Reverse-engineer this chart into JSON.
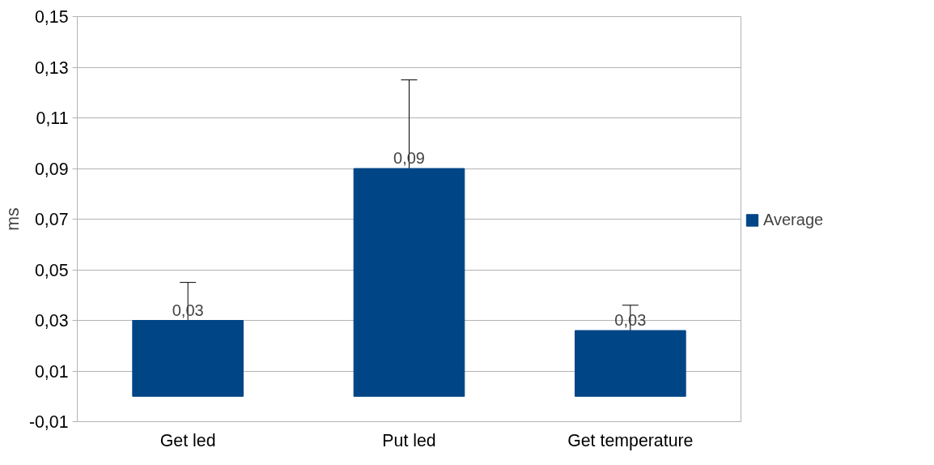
{
  "chart_data": {
    "type": "bar",
    "ylabel": "ms",
    "categories": [
      "Get led",
      "Put led",
      "Get temperature"
    ],
    "series": [
      {
        "name": "Average",
        "color": "#004586",
        "values": [
          0.03,
          0.09,
          0.026
        ],
        "errors": [
          0.015,
          0.035,
          0.01
        ],
        "value_labels": [
          "0,03",
          "0,09",
          "0,03"
        ]
      }
    ],
    "ylim": [
      -0.01,
      0.15
    ],
    "yticks": [
      {
        "value": -0.01,
        "label": "-0,01"
      },
      {
        "value": 0.01,
        "label": "0,01"
      },
      {
        "value": 0.03,
        "label": "0,03"
      },
      {
        "value": 0.05,
        "label": "0,05"
      },
      {
        "value": 0.07,
        "label": "0,07"
      },
      {
        "value": 0.09,
        "label": "0,09"
      },
      {
        "value": 0.11,
        "label": "0,11"
      },
      {
        "value": 0.13,
        "label": "0,13"
      },
      {
        "value": 0.15,
        "label": "0,15"
      }
    ],
    "grid": "y",
    "legend": "right"
  }
}
